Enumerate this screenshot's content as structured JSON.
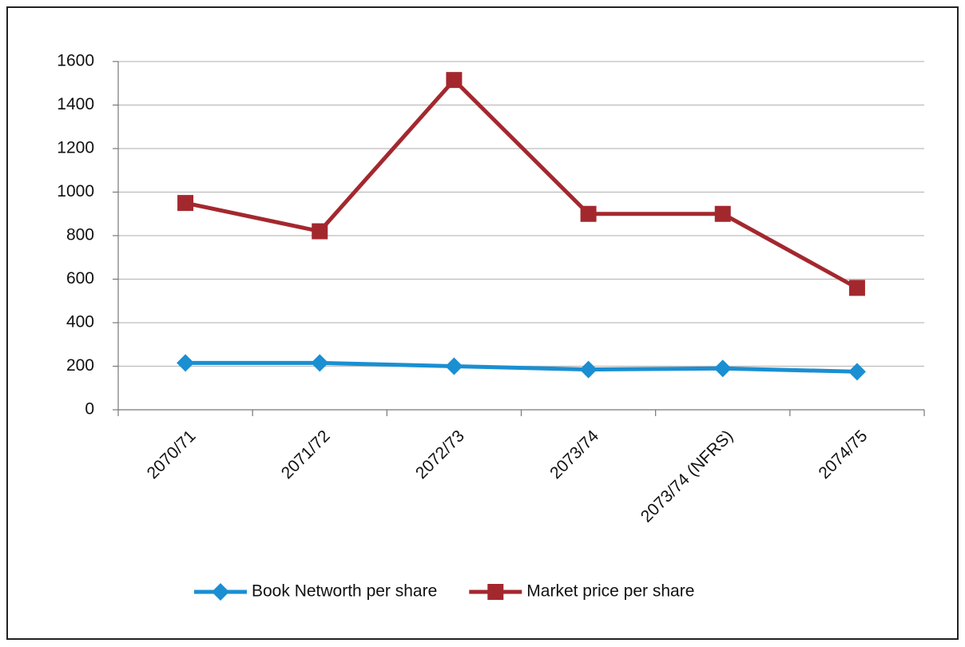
{
  "chart_data": {
    "type": "line",
    "categories": [
      "2070/71",
      "2071/72",
      "2072/73",
      "2073/74",
      "2073/74 (NFRS)",
      "2074/75"
    ],
    "series": [
      {
        "name": "Book Networth per share",
        "color": "#1a8fd2",
        "marker": "diamond",
        "values": [
          215,
          215,
          200,
          185,
          190,
          175
        ]
      },
      {
        "name": "Market price per share",
        "color": "#a3282e",
        "marker": "square",
        "values": [
          950,
          820,
          1515,
          900,
          900,
          560
        ]
      }
    ],
    "ylim": [
      0,
      1600
    ],
    "yticks": [
      0,
      200,
      400,
      600,
      800,
      1000,
      1200,
      1400,
      1600
    ],
    "grid": true,
    "legend": "bottom"
  }
}
